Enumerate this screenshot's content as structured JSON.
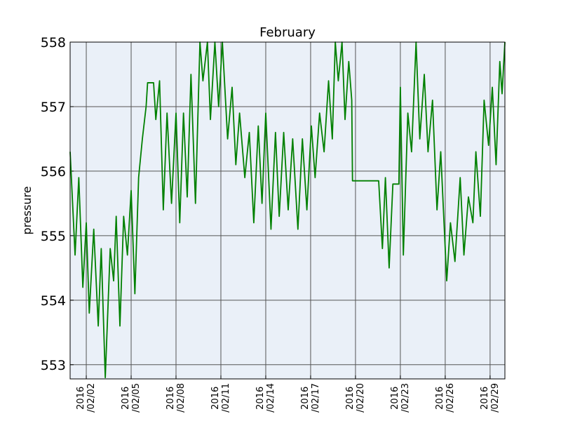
{
  "chart_data": {
    "type": "line",
    "title": "February",
    "ylabel": "pressure",
    "x": [
      0.92,
      1.25,
      1.5,
      1.77,
      2,
      2.2,
      2.5,
      2.8,
      3.0,
      3.27,
      3.6,
      3.83,
      4.0,
      4.25,
      4.5,
      4.75,
      5.0,
      5.25,
      5.5,
      5.75,
      6.0,
      6.1,
      6.5,
      6.65,
      6.9,
      7.15,
      7.4,
      7.7,
      8.0,
      8.25,
      8.5,
      8.75,
      9.0,
      9.3,
      9.6,
      9.8,
      10.1,
      10.3,
      10.6,
      10.85,
      11.1,
      11.45,
      11.75,
      12.0,
      12.25,
      12.6,
      12.9,
      13.2,
      13.5,
      13.75,
      14.0,
      14.35,
      14.65,
      14.9,
      15.2,
      15.5,
      15.8,
      16.15,
      16.45,
      16.75,
      17.05,
      17.3,
      17.6,
      17.9,
      18.2,
      18.45,
      18.65,
      18.85,
      19.1,
      19.3,
      19.55,
      19.75,
      19.8,
      21.55,
      21.8,
      22.0,
      22.25,
      22.5,
      22.9,
      23.0,
      23.2,
      23.5,
      23.75,
      24.05,
      24.3,
      24.6,
      24.85,
      25.15,
      25.45,
      25.7,
      26.1,
      26.35,
      26.65,
      27.0,
      27.25,
      27.55,
      27.85,
      28.05,
      28.35,
      28.6,
      28.9,
      29.15,
      29.4,
      29.65,
      29.8,
      29.99
    ],
    "series": [
      {
        "color": "#008000",
        "values": [
          556.3,
          554.7,
          555.9,
          554.2,
          555.2,
          553.8,
          555.1,
          553.6,
          554.8,
          552.8,
          554.8,
          554.3,
          555.3,
          553.6,
          555.3,
          554.7,
          555.7,
          554.1,
          555.9,
          556.5,
          557.0,
          557.37,
          557.37,
          556.8,
          557.4,
          555.4,
          556.9,
          555.5,
          556.9,
          555.2,
          556.9,
          555.6,
          557.5,
          555.5,
          558,
          557.4,
          558,
          556.8,
          558,
          557.0,
          558,
          556.5,
          557.3,
          556.1,
          556.9,
          555.9,
          556.6,
          555.2,
          556.7,
          555.5,
          556.9,
          555.1,
          556.6,
          555.3,
          556.6,
          555.4,
          556.5,
          555.1,
          556.5,
          555.4,
          556.7,
          555.9,
          556.9,
          556.3,
          557.4,
          556.5,
          558,
          557.4,
          558,
          556.8,
          557.7,
          557.1,
          555.85,
          555.85,
          554.8,
          555.9,
          554.5,
          555.8,
          555.8,
          557.3,
          554.7,
          556.9,
          556.3,
          558,
          556.5,
          557.5,
          556.3,
          557.1,
          555.4,
          556.3,
          554.3,
          555.2,
          554.6,
          555.9,
          554.7,
          555.6,
          555.2,
          556.3,
          555.3,
          557.1,
          556.4,
          557.3,
          556.1,
          557.7,
          557.2,
          558
        ]
      }
    ],
    "xlim": [
      0.92,
      29.99
    ],
    "xticks": [
      {
        "value": 2,
        "label": "2016\n/02/02"
      },
      {
        "value": 5,
        "label": "2016\n/02/05"
      },
      {
        "value": 8,
        "label": "2016\n/02/08"
      },
      {
        "value": 11,
        "label": "2016\n/02/11"
      },
      {
        "value": 14,
        "label": "2016\n/02/14"
      },
      {
        "value": 17,
        "label": "2016\n/02/17"
      },
      {
        "value": 20,
        "label": "2016\n/02/20"
      },
      {
        "value": 23,
        "label": "2016\n/02/23"
      },
      {
        "value": 26,
        "label": "2016\n/02/26"
      },
      {
        "value": 29,
        "label": "2016\n/02/29"
      }
    ],
    "ylim": [
      552.78,
      558
    ],
    "yticks": [
      553,
      554,
      555,
      556,
      557,
      558
    ],
    "grid": true
  }
}
